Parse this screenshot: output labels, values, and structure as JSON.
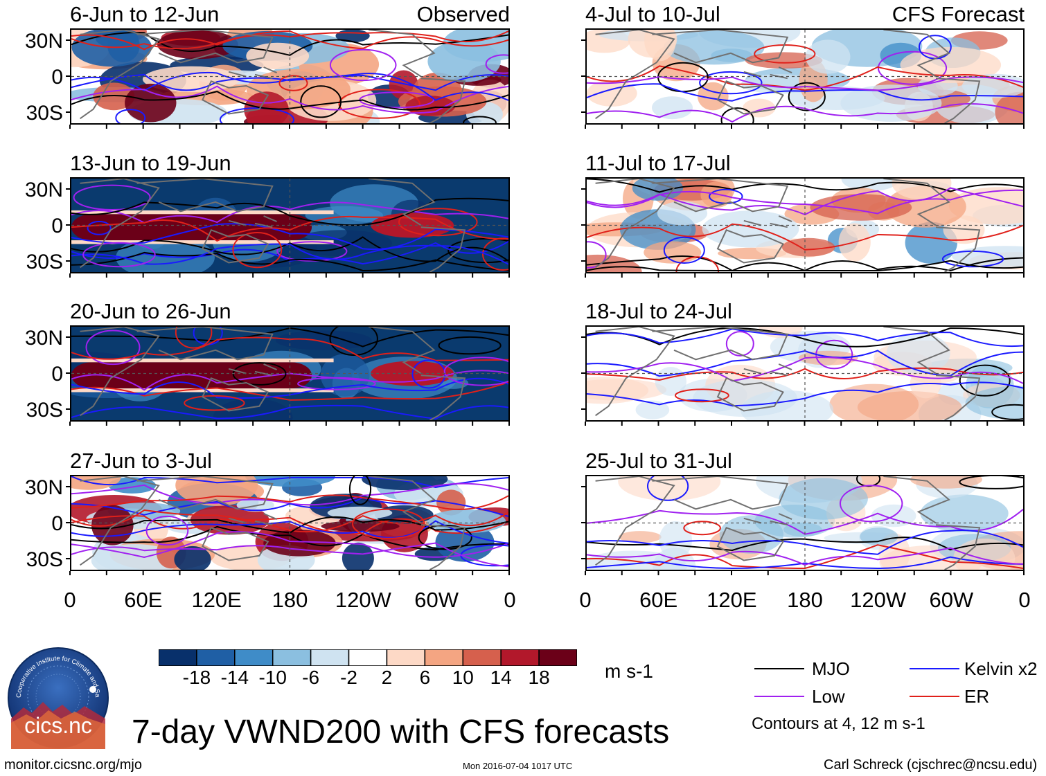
{
  "colors": {
    "mjo": "#000000",
    "kelvin": "#1a1aff",
    "low": "#a020f0",
    "er": "#e0201a",
    "land": "#707070"
  },
  "panels": [
    {
      "id": "obs1",
      "title": "6-Jun to 12-Jun",
      "tag": "Observed",
      "style": "obs"
    },
    {
      "id": "obs2",
      "title": "13-Jun to 19-Jun",
      "tag": "",
      "style": "obsWide"
    },
    {
      "id": "obs3",
      "title": "20-Jun to 26-Jun",
      "tag": "",
      "style": "obsWide"
    },
    {
      "id": "obs4",
      "title": "27-Jun to 3-Jul",
      "tag": "",
      "style": "obs"
    },
    {
      "id": "fc1",
      "title": "4-Jul to 10-Jul",
      "tag": "CFS Forecast",
      "style": "fc"
    },
    {
      "id": "fc2",
      "title": "11-Jul to 17-Jul",
      "tag": "",
      "style": "fc"
    },
    {
      "id": "fc3",
      "title": "18-Jul to 24-Jul",
      "tag": "",
      "style": "fcLight"
    },
    {
      "id": "fc4",
      "title": "25-Jul to 31-Jul",
      "tag": "",
      "style": "fcLight"
    }
  ],
  "y_ticks": [
    "30N",
    "0",
    "30S"
  ],
  "x_ticks": [
    "0",
    "60E",
    "120E",
    "180",
    "120W",
    "60W",
    "0"
  ],
  "colorbar": {
    "colors": [
      "#08306b",
      "#1f5fa5",
      "#3f8cc8",
      "#8bbfe0",
      "#cfe3f1",
      "#ffffff",
      "#fdd9c6",
      "#f4a582",
      "#d6604d",
      "#b2182b",
      "#6b0018"
    ],
    "labels": [
      "-18",
      "-14",
      "-10",
      "-6",
      "-2",
      "2",
      "6",
      "10",
      "14",
      "18"
    ],
    "units": "m s-1"
  },
  "legend": {
    "items": [
      {
        "label": "MJO",
        "key": "mjo"
      },
      {
        "label": "Kelvin x2",
        "key": "kelvin"
      },
      {
        "label": "Low",
        "key": "low"
      },
      {
        "label": "ER",
        "key": "er"
      }
    ],
    "note": "Contours at 4, 12 m s-1"
  },
  "logo": {
    "text": "cics.nc",
    "ring_text": "Cooperative Institute for Climate and Satellites"
  },
  "main_title": "7-day VWND200 with CFS forecasts",
  "footer": {
    "left": "monitor.cicsnc.org/mjo",
    "center": "Mon 2016-07-04 1017 UTC",
    "right": "Carl Schreck (cjschrec@ncsu.edu)"
  }
}
